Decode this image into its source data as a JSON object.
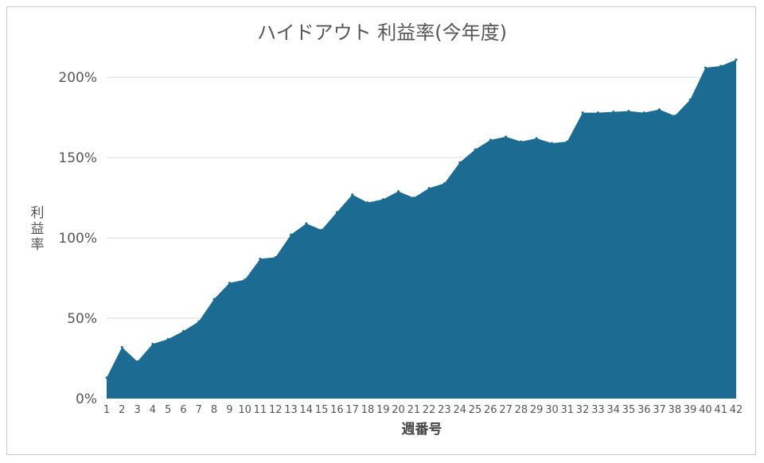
{
  "chart_data": {
    "type": "area",
    "title": "ハイドアウト 利益率(今年度)",
    "xlabel": "週番号",
    "ylabel": "利益率",
    "ylim": [
      0,
      210
    ],
    "y_ticks": [
      0,
      50,
      100,
      150,
      200
    ],
    "y_tick_labels": [
      "0%",
      "50%",
      "100%",
      "150%",
      "200%"
    ],
    "grid": true,
    "legend": "none",
    "fill_color": "#1b6b92",
    "x": [
      "1",
      "2",
      "3",
      "4",
      "5",
      "6",
      "7",
      "8",
      "9",
      "10",
      "11",
      "12",
      "13",
      "14",
      "15",
      "16",
      "17",
      "18",
      "19",
      "20",
      "21",
      "22",
      "23",
      "24",
      "25",
      "26",
      "27",
      "28",
      "29",
      "30",
      "31",
      "32",
      "33",
      "34",
      "35",
      "36",
      "37",
      "38",
      "39",
      "40",
      "41",
      "42"
    ],
    "series": [
      {
        "values": [
          13,
          32,
          23,
          34,
          37,
          42,
          48,
          62,
          72,
          74,
          87,
          88,
          102,
          109,
          105,
          116,
          127,
          122,
          124,
          129,
          125,
          131,
          134,
          147,
          155,
          161,
          163,
          160,
          162,
          159,
          160,
          178,
          178,
          178.5,
          179,
          178,
          180,
          176,
          186,
          206,
          207,
          211
        ]
      }
    ]
  }
}
